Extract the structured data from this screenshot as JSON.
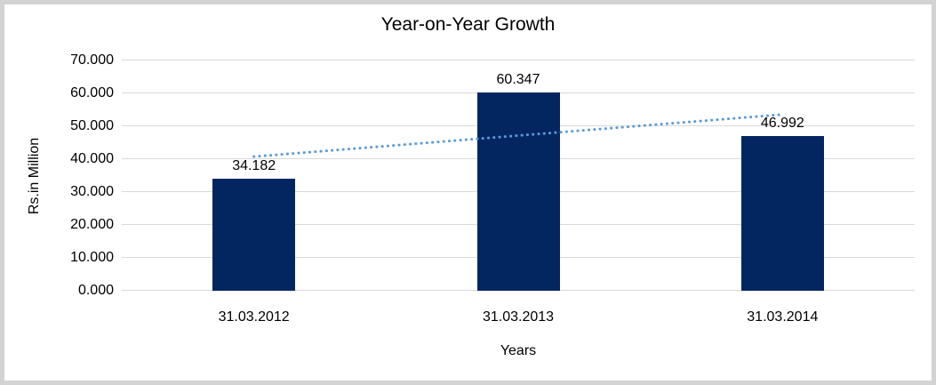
{
  "page": {
    "background_color": "#ffffff",
    "frame_color": "#d3d3d3"
  },
  "chart_data": {
    "type": "bar",
    "title": "Year-on-Year Growth",
    "xlabel": "Years",
    "ylabel": "Rs.in Million",
    "categories": [
      "31.03.2012",
      "31.03.2013",
      "31.03.2014"
    ],
    "values": [
      34.182,
      60.347,
      46.992
    ],
    "value_labels": [
      "34.182",
      "60.347",
      "46.992"
    ],
    "ylim": [
      0,
      70
    ],
    "ytick_step": 10,
    "ytick_labels": [
      "0.000",
      "10.000",
      "20.000",
      "30.000",
      "40.000",
      "50.000",
      "60.000",
      "70.000"
    ],
    "grid": true,
    "legend": "none",
    "colors": {
      "bar": "#032661",
      "gridline": "#d9d9d9",
      "text": "#000000",
      "trendline": "#5b9bd5"
    },
    "trendline": {
      "type": "linear",
      "style": "dotted",
      "color": "#5b9bd5"
    }
  }
}
